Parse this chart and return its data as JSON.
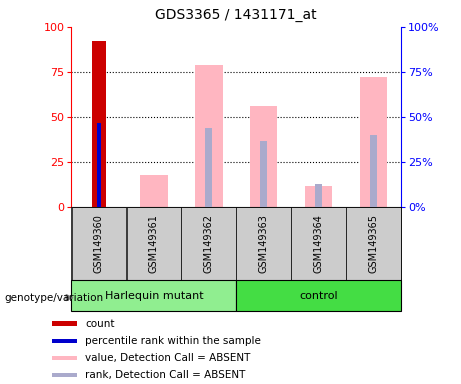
{
  "title": "GDS3365 / 1431171_at",
  "samples": [
    "GSM149360",
    "GSM149361",
    "GSM149362",
    "GSM149363",
    "GSM149364",
    "GSM149365"
  ],
  "count_bar": {
    "sample_idx": 0,
    "value": 92,
    "color": "#CC0000"
  },
  "percentile_rank_bar": {
    "sample_idx": 0,
    "value": 47,
    "color": "#0000CC"
  },
  "absent_value_bars": [
    {
      "sample_idx": 1,
      "value": 18,
      "color": "#FFB6C1"
    },
    {
      "sample_idx": 2,
      "value": 79,
      "color": "#FFB6C1"
    },
    {
      "sample_idx": 3,
      "value": 56,
      "color": "#FFB6C1"
    },
    {
      "sample_idx": 4,
      "value": 12,
      "color": "#FFB6C1"
    },
    {
      "sample_idx": 5,
      "value": 72,
      "color": "#FFB6C1"
    }
  ],
  "absent_rank_bars": [
    {
      "sample_idx": 2,
      "value": 44,
      "color": "#AAAACC"
    },
    {
      "sample_idx": 3,
      "value": 37,
      "color": "#AAAACC"
    },
    {
      "sample_idx": 4,
      "value": 13,
      "color": "#AAAACC"
    },
    {
      "sample_idx": 5,
      "value": 40,
      "color": "#AAAACC"
    }
  ],
  "ylim": [
    0,
    100
  ],
  "yticks": [
    0,
    25,
    50,
    75,
    100
  ],
  "group1_name": "Harlequin mutant",
  "group1_color": "#90EE90",
  "group1_samples": [
    0,
    1,
    2
  ],
  "group2_name": "control",
  "group2_color": "#44DD44",
  "group2_samples": [
    3,
    4,
    5
  ],
  "genotype_label": "genotype/variation",
  "legend_items": [
    {
      "color": "#CC0000",
      "label": "count"
    },
    {
      "color": "#0000CC",
      "label": "percentile rank within the sample"
    },
    {
      "color": "#FFB6C1",
      "label": "value, Detection Call = ABSENT"
    },
    {
      "color": "#AAAACC",
      "label": "rank, Detection Call = ABSENT"
    }
  ],
  "absent_value_bar_width": 0.5,
  "absent_rank_bar_width": 0.12,
  "count_bar_width": 0.25,
  "pct_rank_bar_width": 0.08
}
